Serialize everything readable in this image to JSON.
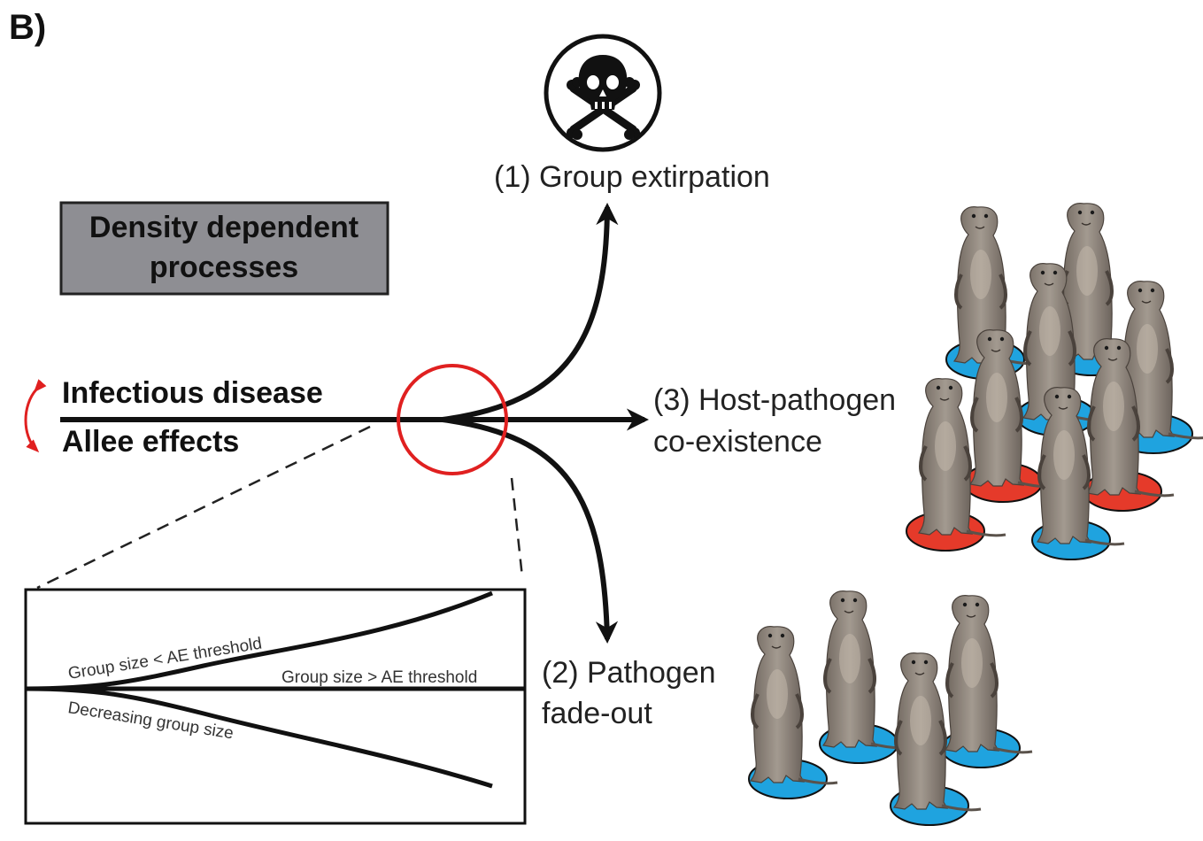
{
  "panel_label": "B)",
  "density_box": {
    "line1": "Density dependent",
    "line2": "processes"
  },
  "drivers": {
    "disease": "Infectious disease",
    "allee": "Allee effects"
  },
  "outcomes": {
    "extirpation": "(1) Group extirpation",
    "coexistence_line1": "(3) Host-pathogen",
    "coexistence_line2": "co-existence",
    "fadeout_line1": "(2) Pathogen",
    "fadeout_line2": "fade-out"
  },
  "inset": {
    "upper_label": "Group size < AE threshold",
    "middle_label": "Group size > AE threshold",
    "lower_label": "Decreasing group size"
  },
  "icons": {
    "extirpation": "skull-crossbones-icon",
    "animal": "mongoose-icon"
  },
  "colors": {
    "highlight_circle": "#e02020",
    "box_fill": "#8e8e93",
    "infected_base": "#e53a2a",
    "healthy_base": "#1fa3df"
  }
}
